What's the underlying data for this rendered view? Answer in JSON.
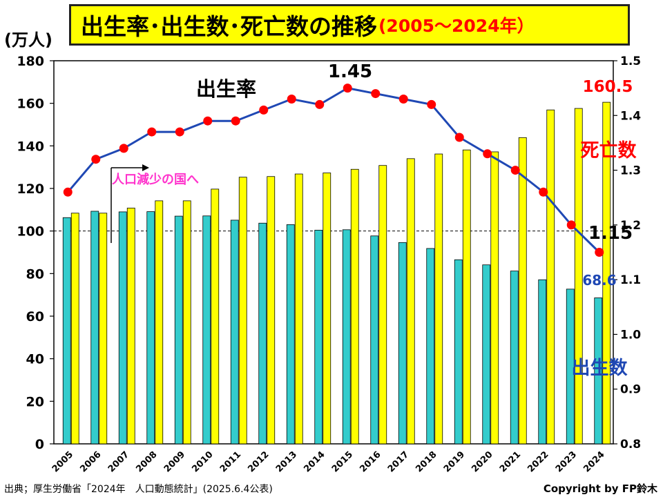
{
  "title": {
    "main": "出生率･出生数･死亡数の推移",
    "sub": "(2005～2024年）",
    "sub_color": "#ff0000"
  },
  "left_unit": "(万人)",
  "source": "出典；厚生労働省「2024年　人口動態統計」(2025.6.4公表)",
  "copyright": "Copyright by FP鈴木",
  "colors": {
    "births_bar": "#33cccc",
    "deaths_bar": "#ffff00",
    "rate_line": "#1f48b4",
    "rate_marker": "#ff0000",
    "births_label": "#1f48b4",
    "deaths_label": "#ff0000",
    "arrow_text": "#ff33cc",
    "plot_background": "#ffffff"
  },
  "chart_data": {
    "type": "bar",
    "categories": [
      "2005",
      "2006",
      "2007",
      "2008",
      "2009",
      "2010",
      "2011",
      "2012",
      "2013",
      "2014",
      "2015",
      "2016",
      "2017",
      "2018",
      "2019",
      "2020",
      "2021",
      "2022",
      "2023",
      "2024"
    ],
    "series": [
      {
        "name": "出生数",
        "type": "bar",
        "axis": "left",
        "values": [
          106.3,
          109.3,
          109.0,
          109.1,
          107.0,
          107.1,
          105.1,
          103.7,
          103.0,
          100.4,
          100.6,
          97.7,
          94.6,
          91.8,
          86.5,
          84.1,
          81.2,
          77.1,
          72.7,
          68.6
        ]
      },
      {
        "name": "死亡数",
        "type": "bar",
        "axis": "left",
        "values": [
          108.4,
          108.4,
          110.8,
          114.2,
          114.2,
          119.7,
          125.3,
          125.6,
          126.8,
          127.3,
          129.0,
          130.8,
          134.0,
          136.2,
          138.1,
          137.2,
          143.9,
          156.9,
          157.6,
          160.5
        ]
      },
      {
        "name": "出生率",
        "type": "line",
        "axis": "right",
        "values": [
          1.26,
          1.32,
          1.34,
          1.37,
          1.37,
          1.39,
          1.39,
          1.41,
          1.43,
          1.42,
          1.45,
          1.44,
          1.43,
          1.42,
          1.36,
          1.33,
          1.3,
          1.26,
          1.2,
          1.15
        ]
      }
    ],
    "y_left": {
      "min": 0,
      "max": 180,
      "ticks": [
        "0",
        "20",
        "40",
        "60",
        "80",
        "100",
        "120",
        "140",
        "160",
        "180"
      ]
    },
    "y_right": {
      "min": 0.8,
      "max": 1.5,
      "ticks": [
        "0.8",
        "0.9",
        "1.0",
        "1.1",
        "1.2",
        "1.3",
        "1.4",
        "1.5"
      ]
    },
    "reference_line": {
      "axis": "left",
      "value": 100
    },
    "annotations": {
      "rate_label": "出生率",
      "rate_max": "1.45",
      "rate_last": "1.15",
      "deaths_last": "160.5",
      "deaths_label": "死亡数",
      "births_last": "68.6",
      "births_label": "出生数",
      "arrow_text": "人口減少の国へ"
    },
    "grid": false
  }
}
